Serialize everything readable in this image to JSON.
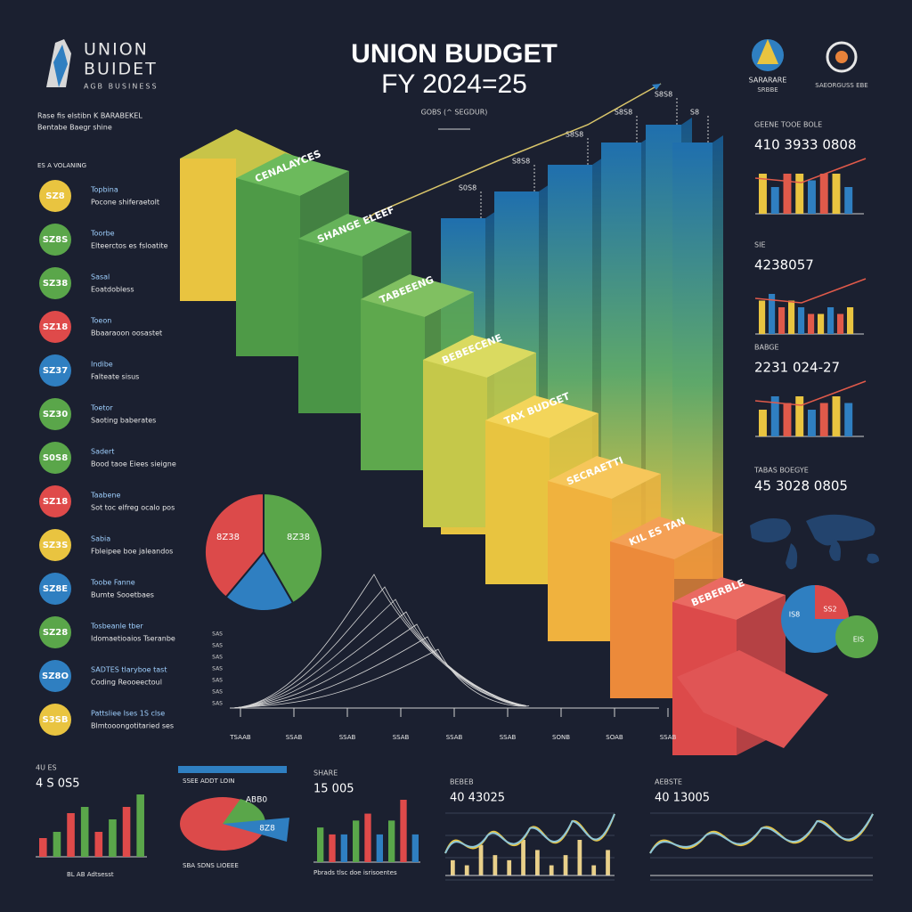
{
  "header": {
    "title_line1": "UNION BUDGET",
    "title_line2": "FY 2024=25",
    "subtitle": "GOBS (^ SEGDUR)",
    "logo_line1": "UNION",
    "logo_line2": "BUIDET",
    "logo_tag": "AGB BUSINESS",
    "emblem1": "SARARARE",
    "emblem1_sub": "SRBBE",
    "emblem2": "SAEORGUSS EBE"
  },
  "intro": [
    "Rase fis elstibn  K BARABEKEL",
    "Bentabe Baegr shine"
  ],
  "sidebar_heading": "ES A VOLANING",
  "sidebar_items": [
    {
      "badge": "SZ8",
      "title": "Topbina",
      "text": "Pocone shiferaetolt",
      "color": "#e9c440"
    },
    {
      "badge": "SZ8S",
      "title": "Toorbe",
      "text": "Elteerctos es fsloatite",
      "color": "#5aa64a"
    },
    {
      "badge": "SZ38",
      "title": "Sasal",
      "text": "Eoatdobless",
      "color": "#5aa64a"
    },
    {
      "badge": "SZ18",
      "title": "Toeon",
      "text": "Bbaaraoon oosastet",
      "color": "#df4a4a"
    },
    {
      "badge": "SZ37",
      "title": "Indibe",
      "text": "Falteate sisus",
      "color": "#2f7fc1"
    },
    {
      "badge": "SZ30",
      "title": "Toetor",
      "text": "Saoting baberates",
      "color": "#5aa64a"
    },
    {
      "badge": "S0S8",
      "title": "Sadert",
      "text": "Bood taoe Eiees sieigne",
      "color": "#5aa64a"
    },
    {
      "badge": "SZ18",
      "title": "Taabene",
      "text": "Sot toc elfreg ocalo pos",
      "color": "#df4a4a"
    },
    {
      "badge": "SZ3S",
      "title": "Sabia",
      "text": "Fbleipee boe jaleandos",
      "color": "#e9c440"
    },
    {
      "badge": "SZ8E",
      "title": "Toobe Fanne",
      "text": "Bumte Sooetbaes",
      "color": "#2f7fc1"
    },
    {
      "badge": "SZ28",
      "title": "Tosbeanle tber",
      "text": "Idomaetioaios Tseranbe",
      "color": "#5aa64a"
    },
    {
      "badge": "SZ8O",
      "title": "SADTES tlaryboe tast",
      "text": "Coding Reooeectoul",
      "color": "#2f7fc1"
    },
    {
      "badge": "S3SB",
      "title": "Pattsliee Ises 1S clse",
      "text": "Blmtooongotitaried ses",
      "color": "#e9c440"
    }
  ],
  "steps": [
    "CENALAYCES",
    "SHANGE ELEEF",
    "TABEEENG",
    "BEBEECENE",
    "TAX BUDGET",
    "SECRAETTI",
    "KIL ES TAN",
    "BEBERBLE"
  ],
  "tower_labels": [
    "S0S8",
    "S8S8",
    "S8S8",
    "S8S8",
    "S8S8",
    "S8"
  ],
  "pie": {
    "labels": [
      "8Z38",
      "8Z38"
    ]
  },
  "wave_chart": {
    "ylabels": [
      "SAS",
      "SAS",
      "SAS",
      "SAS",
      "SAS",
      "SAS",
      "SAS"
    ],
    "xlabels": [
      "TSAAB",
      "SSAB",
      "SSAB",
      "SSAB",
      "SSAB",
      "SSAB",
      "SONB",
      "SOAB",
      "SSAB"
    ]
  },
  "right_panels": [
    {
      "heading": "GEENE TOOE BOLE",
      "value": "410 3933 0808",
      "bars": [
        6,
        4,
        6,
        6,
        5,
        6,
        6,
        4
      ]
    },
    {
      "heading": "SIE",
      "value": "4238057",
      "bars": [
        5,
        6,
        4,
        5,
        4,
        3,
        3,
        4,
        3,
        4
      ]
    },
    {
      "heading": "BABGE",
      "value": "2231 024-27",
      "bars": [
        4,
        6,
        5,
        6,
        4,
        5,
        6,
        5
      ]
    }
  ],
  "right_text": {
    "heading": "TABAS BOEGYE",
    "value": "45 3028 0805"
  },
  "right_pie": {
    "labels": [
      "IS8",
      "SS2",
      "EIS"
    ]
  },
  "bottom": {
    "bar1": {
      "heading": "4U ES",
      "value": "4 S 0S5",
      "footer": "BL AB Adtsesst",
      "bars": [
        3,
        4,
        7,
        8,
        4,
        6,
        8,
        10
      ]
    },
    "pie": {
      "heading": "SSEE ADDT LOIN",
      "labels": [
        "ABB0",
        "8Z8"
      ],
      "footer": "SBA SDNS LIOEEE"
    },
    "bar2": {
      "heading": "SHARE",
      "value": "15 005",
      "footer": "Pbrads tlsc doe isrisoentes",
      "bars": [
        5,
        4,
        4,
        6,
        7,
        4,
        6,
        9,
        4
      ]
    },
    "wave1": {
      "heading": "BEBEB",
      "value": "40 43025",
      "bars": [
        3,
        2,
        6,
        4,
        3,
        7,
        5,
        2,
        4,
        7,
        2,
        5
      ]
    },
    "wave2": {
      "heading": "AEBSTE",
      "value": "40 13005"
    }
  }
}
